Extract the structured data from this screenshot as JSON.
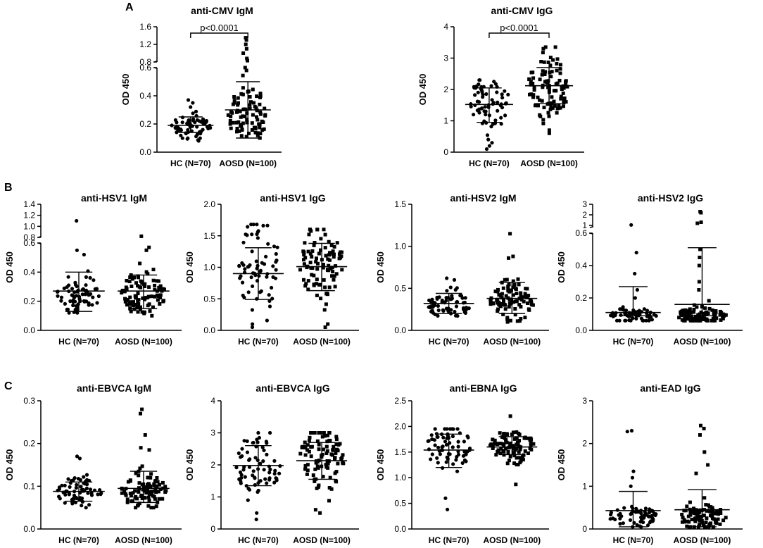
{
  "panel_letters": [
    "A",
    "B",
    "C"
  ],
  "colors": {
    "ink": "#000000",
    "background": "#ffffff"
  },
  "chart_data": [
    {
      "type": "scatter",
      "id": "cmv_igm",
      "panel": "A",
      "title": "anti-CMV IgM",
      "ylabel": "OD 450",
      "categories": [
        "HC (N=70)",
        "AOSD (N=100)"
      ],
      "axis_break": {
        "lower": [
          0,
          0.6
        ],
        "upper": [
          0.8,
          1.6
        ]
      },
      "yticks": [
        "0.0",
        "0.2",
        "0.4",
        "0.6",
        "0.8",
        "1.2",
        "1.6"
      ],
      "annotation": "p<0.0001",
      "series": [
        {
          "name": "HC (N=70)",
          "marker": "circle",
          "n": 70,
          "min": 0.08,
          "max": 0.37,
          "median": 0.18,
          "spread": 0.05,
          "mean": 0.19,
          "sd_low": 0.14,
          "sd_high": 0.25,
          "extremes": [
            0.37,
            0.35,
            0.32
          ]
        },
        {
          "name": "AOSD (N=100)",
          "marker": "square",
          "n": 100,
          "min": 0.1,
          "max": 1.35,
          "median": 0.26,
          "spread": 0.12,
          "mean": 0.3,
          "sd_low": 0.1,
          "sd_high": 0.5,
          "extremes": [
            1.35,
            1.3,
            1.2,
            1.1,
            1.0,
            0.88,
            0.83,
            0.6,
            0.58
          ]
        }
      ]
    },
    {
      "type": "scatter",
      "id": "cmv_igg",
      "panel": "A",
      "title": "anti-CMV IgG",
      "ylabel": "OD 450",
      "categories": [
        "HC (N=70)",
        "AOSD (N=100)"
      ],
      "ylim": [
        0,
        4
      ],
      "yticks": [
        "0",
        "1",
        "2",
        "3",
        "4"
      ],
      "annotation": "p<0.0001",
      "series": [
        {
          "name": "HC (N=70)",
          "marker": "circle",
          "n": 70,
          "min": 0.1,
          "max": 2.3,
          "median": 1.6,
          "spread": 0.5,
          "mean": 1.52,
          "sd_low": 0.95,
          "sd_high": 2.05,
          "extremes": [
            0.1,
            0.2,
            0.3
          ]
        },
        {
          "name": "AOSD (N=100)",
          "marker": "square",
          "n": 100,
          "min": 0.6,
          "max": 3.35,
          "median": 2.1,
          "spread": 0.6,
          "mean": 2.12,
          "sd_low": 1.55,
          "sd_high": 2.7,
          "extremes": [
            3.35,
            3.3,
            0.6,
            0.7
          ]
        }
      ]
    },
    {
      "type": "scatter",
      "id": "hsv1_igm",
      "panel": "B",
      "title": "anti-HSV1 IgM",
      "ylabel": "OD 450",
      "categories": [
        "HC (N=70)",
        "AOSD (N=100)"
      ],
      "axis_break": {
        "lower": [
          0,
          0.6
        ],
        "upper": [
          0.8,
          1.4
        ]
      },
      "yticks": [
        "0.0",
        "0.2",
        "0.4",
        "0.6",
        "0.8",
        "1.0",
        "1.2",
        "1.4"
      ],
      "series": [
        {
          "name": "HC (N=70)",
          "marker": "circle",
          "n": 70,
          "min": 0.12,
          "max": 1.1,
          "median": 0.25,
          "spread": 0.08,
          "mean": 0.27,
          "sd_low": 0.13,
          "sd_high": 0.4,
          "extremes": [
            1.1,
            0.55,
            0.52
          ]
        },
        {
          "name": "AOSD (N=100)",
          "marker": "square",
          "n": 100,
          "min": 0.1,
          "max": 0.82,
          "median": 0.25,
          "spread": 0.09,
          "mean": 0.27,
          "sd_low": 0.15,
          "sd_high": 0.38,
          "extremes": [
            0.82,
            0.57,
            0.55
          ]
        }
      ]
    },
    {
      "type": "scatter",
      "id": "hsv1_igg",
      "panel": "B",
      "title": "anti-HSV1 IgG",
      "ylabel": "OD 450",
      "categories": [
        "HC (N=70)",
        "AOSD (N=100)"
      ],
      "ylim": [
        0,
        2
      ],
      "yticks": [
        "0.0",
        "0.5",
        "1.0",
        "1.5",
        "2.0"
      ],
      "series": [
        {
          "name": "HC (N=70)",
          "marker": "circle",
          "n": 70,
          "min": 0.03,
          "max": 1.68,
          "median": 1.0,
          "spread": 0.45,
          "mean": 0.9,
          "sd_low": 0.49,
          "sd_high": 1.31,
          "extremes": [
            1.68,
            0.05,
            0.1
          ]
        },
        {
          "name": "AOSD (N=100)",
          "marker": "square",
          "n": 100,
          "min": 0.05,
          "max": 1.6,
          "median": 1.05,
          "spread": 0.35,
          "mean": 1.01,
          "sd_low": 0.63,
          "sd_high": 1.38,
          "extremes": [
            1.6,
            0.05,
            0.1
          ]
        }
      ]
    },
    {
      "type": "scatter",
      "id": "hsv2_igm",
      "panel": "B",
      "title": "anti-HSV2 IgM",
      "ylabel": "OD 450",
      "categories": [
        "HC (N=70)",
        "AOSD (N=100)"
      ],
      "ylim": [
        0,
        1.5
      ],
      "yticks": [
        "0.0",
        "0.5",
        "1.0",
        "1.5"
      ],
      "series": [
        {
          "name": "HC (N=70)",
          "marker": "circle",
          "n": 70,
          "min": 0.12,
          "max": 0.62,
          "median": 0.3,
          "spread": 0.1,
          "mean": 0.32,
          "sd_low": 0.2,
          "sd_high": 0.44,
          "extremes": [
            0.62,
            0.6
          ]
        },
        {
          "name": "AOSD (N=100)",
          "marker": "square",
          "n": 100,
          "min": 0.1,
          "max": 1.15,
          "median": 0.35,
          "spread": 0.14,
          "mean": 0.38,
          "sd_low": 0.2,
          "sd_high": 0.57,
          "extremes": [
            1.15,
            0.88,
            0.86
          ]
        }
      ]
    },
    {
      "type": "scatter",
      "id": "hsv2_igg",
      "panel": "B",
      "title": "anti-HSV2 IgG",
      "ylabel": "OD 450",
      "categories": [
        "HC (N=70)",
        "AOSD (N=100)"
      ],
      "axis_break": {
        "lower": [
          0,
          0.6
        ],
        "upper": [
          0.8,
          3
        ]
      },
      "yticks": [
        "0.0",
        "0.2",
        "0.4",
        "0.6",
        "1",
        "2",
        "3"
      ],
      "series": [
        {
          "name": "HC (N=70)",
          "marker": "circle",
          "n": 70,
          "min": 0.06,
          "max": 1.05,
          "median": 0.09,
          "spread": 0.03,
          "mean": 0.11,
          "sd_low": 0.09,
          "sd_high": 0.27,
          "extremes": [
            1.05,
            0.48,
            0.35,
            0.25,
            0.2
          ]
        },
        {
          "name": "AOSD (N=100)",
          "marker": "square",
          "n": 100,
          "min": 0.06,
          "max": 2.3,
          "median": 0.09,
          "spread": 0.04,
          "mean": 0.16,
          "sd_low": 0.09,
          "sd_high": 0.51,
          "extremes": [
            2.3,
            2.2,
            1.3,
            1.2,
            0.5,
            0.45,
            0.4,
            0.3,
            0.25
          ]
        }
      ]
    },
    {
      "type": "scatter",
      "id": "ebvca_igm",
      "panel": "C",
      "title": "anti-EBVCA IgM",
      "ylabel": "OD 450",
      "categories": [
        "HC (N=70)",
        "AOSD (N=100)"
      ],
      "ylim": [
        0,
        0.3
      ],
      "yticks": [
        "0.0",
        "0.1",
        "0.2",
        "0.3"
      ],
      "series": [
        {
          "name": "HC (N=70)",
          "marker": "circle",
          "n": 70,
          "min": 0.05,
          "max": 0.17,
          "median": 0.085,
          "spread": 0.022,
          "mean": 0.088,
          "sd_low": 0.065,
          "sd_high": 0.11,
          "extremes": [
            0.17,
            0.165
          ]
        },
        {
          "name": "AOSD (N=100)",
          "marker": "square",
          "n": 100,
          "min": 0.05,
          "max": 0.28,
          "median": 0.09,
          "spread": 0.025,
          "mean": 0.095,
          "sd_low": 0.062,
          "sd_high": 0.135,
          "extremes": [
            0.28,
            0.27,
            0.22,
            0.19,
            0.185
          ]
        }
      ]
    },
    {
      "type": "scatter",
      "id": "ebvca_igg",
      "panel": "C",
      "title": "anti-EBVCA IgG",
      "ylabel": "OD 450",
      "categories": [
        "HC (N=70)",
        "AOSD (N=100)"
      ],
      "ylim": [
        0,
        4
      ],
      "yticks": [
        "0",
        "1",
        "2",
        "3",
        "4"
      ],
      "series": [
        {
          "name": "HC (N=70)",
          "marker": "circle",
          "n": 70,
          "min": 0.3,
          "max": 3.0,
          "median": 2.0,
          "spread": 0.65,
          "mean": 1.98,
          "sd_low": 1.35,
          "sd_high": 2.6,
          "extremes": [
            0.3,
            0.5
          ]
        },
        {
          "name": "AOSD (N=100)",
          "marker": "square",
          "n": 100,
          "min": 0.5,
          "max": 3.0,
          "median": 2.2,
          "spread": 0.6,
          "mean": 2.13,
          "sd_low": 1.55,
          "sd_high": 2.7,
          "extremes": [
            0.5,
            0.6
          ]
        }
      ]
    },
    {
      "type": "scatter",
      "id": "ebna_igg",
      "panel": "C",
      "title": "anti-EBNA IgG",
      "ylabel": "OD 450",
      "categories": [
        "HC (N=70)",
        "AOSD (N=100)"
      ],
      "ylim": [
        0,
        2.5
      ],
      "yticks": [
        "0.0",
        "0.5",
        "1.0",
        "1.5",
        "2.0",
        "2.5"
      ],
      "series": [
        {
          "name": "HC (N=70)",
          "marker": "circle",
          "n": 70,
          "min": 0.38,
          "max": 1.95,
          "median": 1.6,
          "spread": 0.3,
          "mean": 1.54,
          "sd_low": 1.2,
          "sd_high": 1.85,
          "extremes": [
            0.38,
            0.6
          ]
        },
        {
          "name": "AOSD (N=100)",
          "marker": "square",
          "n": 100,
          "min": 0.87,
          "max": 2.2,
          "median": 1.62,
          "spread": 0.2,
          "mean": 1.6,
          "sd_low": 1.45,
          "sd_high": 1.8,
          "extremes": [
            2.2,
            0.87
          ]
        }
      ]
    },
    {
      "type": "scatter",
      "id": "ead_igg",
      "panel": "C",
      "title": "anti-EAD IgG",
      "ylabel": "OD 450",
      "categories": [
        "HC (N=70)",
        "AOSD (N=100)"
      ],
      "ylim": [
        0,
        3
      ],
      "yticks": [
        "0",
        "1",
        "2",
        "3"
      ],
      "series": [
        {
          "name": "HC (N=70)",
          "marker": "circle",
          "n": 70,
          "min": 0.05,
          "max": 2.3,
          "median": 0.3,
          "spread": 0.18,
          "mean": 0.43,
          "sd_low": 0.05,
          "sd_high": 0.88,
          "extremes": [
            2.3,
            2.28,
            1.35,
            1.2,
            1.0
          ]
        },
        {
          "name": "AOSD (N=100)",
          "marker": "square",
          "n": 100,
          "min": 0.05,
          "max": 2.42,
          "median": 0.3,
          "spread": 0.2,
          "mean": 0.45,
          "sd_low": 0.05,
          "sd_high": 0.92,
          "extremes": [
            2.42,
            2.35,
            2.2,
            1.8,
            1.5,
            1.3
          ]
        }
      ]
    }
  ]
}
